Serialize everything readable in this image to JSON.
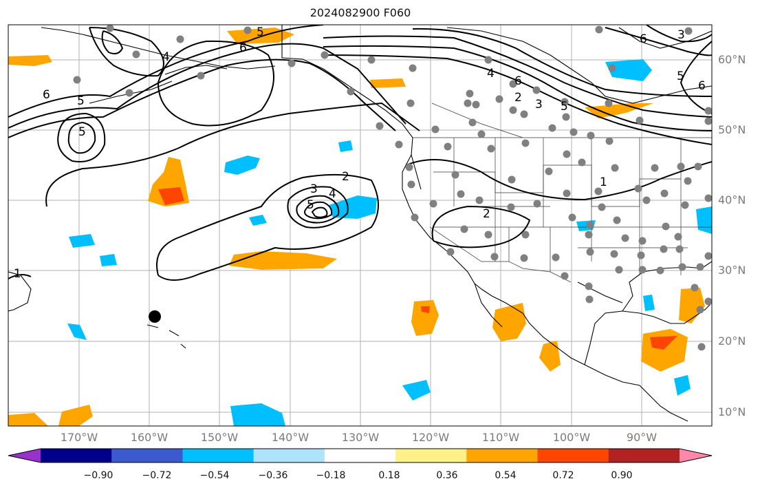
{
  "title": "2024082900 F060",
  "lat_labels": [
    "60°N",
    "50°N",
    "40°N",
    "30°N",
    "20°N",
    "10°N"
  ],
  "lon_labels": [
    "170°W",
    "160°W",
    "150°W",
    "140°W",
    "130°W",
    "120°W",
    "110°W",
    "100°W",
    "90°W"
  ],
  "colorbar": {
    "labels": [
      "−0.90",
      "−0.72",
      "−0.54",
      "−0.36",
      "−0.18",
      "0.18",
      "0.36",
      "0.54",
      "0.72",
      "0.90"
    ],
    "colors": [
      "#9932cc",
      "#00008b",
      "#3a5acd",
      "#00bfff",
      "#aee4fb",
      "#ffffff",
      "#fff08a",
      "#ffa500",
      "#ff4500",
      "#b22222",
      "#ff88aa"
    ]
  },
  "contour_labels": [
    "5",
    "6",
    "4",
    "6",
    "5",
    "5",
    "6",
    "4",
    "6",
    "2",
    "3",
    "5",
    "2",
    "3",
    "4",
    "5",
    "2",
    "1",
    "1",
    "5",
    "6",
    "3"
  ],
  "colors": {
    "land_line": "#000000",
    "contour": "#000000",
    "grid": "#b0b0b0",
    "station": "#808080",
    "positive": "#ffa500",
    "positive_strong": "#ff4500",
    "negative": "#00bfff"
  }
}
